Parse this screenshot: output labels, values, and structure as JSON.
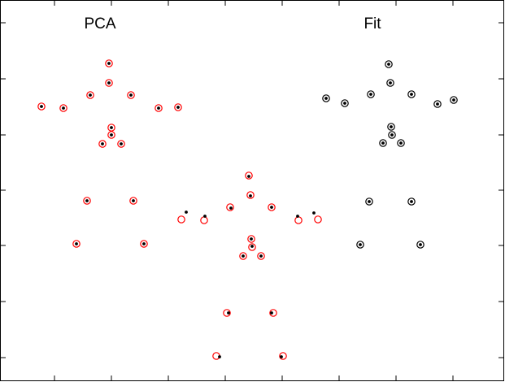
{
  "chart_data": {
    "type": "scatter",
    "grid": false,
    "xlim": [
      0,
      621
    ],
    "ylim": [
      0,
      470
    ],
    "annotations": [
      {
        "text": "PCA",
        "x": 123,
        "y": 28
      },
      {
        "text": "Fit",
        "x": 458,
        "y": 28
      }
    ],
    "x_ticks": [
      67,
      137,
      207,
      277,
      347,
      417,
      487,
      557
    ],
    "y_ticks": [
      28,
      97,
      166,
      234,
      302,
      371,
      440
    ],
    "series": [
      {
        "marker": "open-circle",
        "color": "#ff0000",
        "points": [
          [
            134,
            78
          ],
          [
            134,
            102
          ],
          [
            111,
            117
          ],
          [
            161,
            117
          ],
          [
            51,
            131
          ],
          [
            78,
            133
          ],
          [
            195,
            133
          ],
          [
            219,
            132
          ],
          [
            137,
            157
          ],
          [
            137,
            166
          ],
          [
            126,
            177
          ],
          [
            149,
            177
          ],
          [
            107,
            247
          ],
          [
            164,
            247
          ],
          [
            94,
            300
          ],
          [
            177,
            300
          ],
          [
            306,
            216
          ],
          [
            308,
            240
          ],
          [
            283,
            255
          ],
          [
            334,
            255
          ],
          [
            223,
            270
          ],
          [
            251,
            271
          ],
          [
            367,
            271
          ],
          [
            391,
            270
          ],
          [
            309,
            294
          ],
          [
            310,
            304
          ],
          [
            299,
            315
          ],
          [
            321,
            315
          ],
          [
            279,
            385
          ],
          [
            336,
            385
          ],
          [
            266,
            438
          ],
          [
            348,
            438
          ]
        ]
      },
      {
        "marker": "open-circle",
        "color": "#000000",
        "points": [
          [
            478,
            79
          ],
          [
            480,
            102
          ],
          [
            456,
            116
          ],
          [
            506,
            116
          ],
          [
            401,
            121
          ],
          [
            424,
            127
          ],
          [
            538,
            128
          ],
          [
            558,
            123
          ],
          [
            481,
            156
          ],
          [
            482,
            166
          ],
          [
            471,
            176
          ],
          [
            493,
            176
          ],
          [
            454,
            248
          ],
          [
            506,
            248
          ],
          [
            443,
            301
          ],
          [
            517,
            301
          ]
        ]
      },
      {
        "marker": "dot",
        "color": "#000000",
        "points": [
          [
            134,
            78
          ],
          [
            134,
            102
          ],
          [
            111,
            117
          ],
          [
            161,
            117
          ],
          [
            51,
            131
          ],
          [
            78,
            133
          ],
          [
            195,
            133
          ],
          [
            219,
            132
          ],
          [
            137,
            157
          ],
          [
            137,
            166
          ],
          [
            126,
            177
          ],
          [
            149,
            177
          ],
          [
            107,
            247
          ],
          [
            164,
            247
          ],
          [
            94,
            300
          ],
          [
            177,
            300
          ],
          [
            478,
            79
          ],
          [
            480,
            102
          ],
          [
            456,
            116
          ],
          [
            506,
            116
          ],
          [
            401,
            121
          ],
          [
            424,
            127
          ],
          [
            538,
            128
          ],
          [
            558,
            123
          ],
          [
            481,
            156
          ],
          [
            482,
            166
          ],
          [
            471,
            176
          ],
          [
            493,
            176
          ],
          [
            454,
            248
          ],
          [
            506,
            248
          ],
          [
            443,
            301
          ],
          [
            517,
            301
          ],
          [
            306,
            217
          ],
          [
            308,
            241
          ],
          [
            284,
            256
          ],
          [
            334,
            255
          ],
          [
            229,
            261
          ],
          [
            252,
            266
          ],
          [
            366,
            266
          ],
          [
            386,
            262
          ],
          [
            309,
            294
          ],
          [
            310,
            303
          ],
          [
            299,
            315
          ],
          [
            321,
            315
          ],
          [
            281,
            385
          ],
          [
            334,
            385
          ],
          [
            270,
            439
          ],
          [
            346,
            439
          ]
        ]
      }
    ]
  }
}
